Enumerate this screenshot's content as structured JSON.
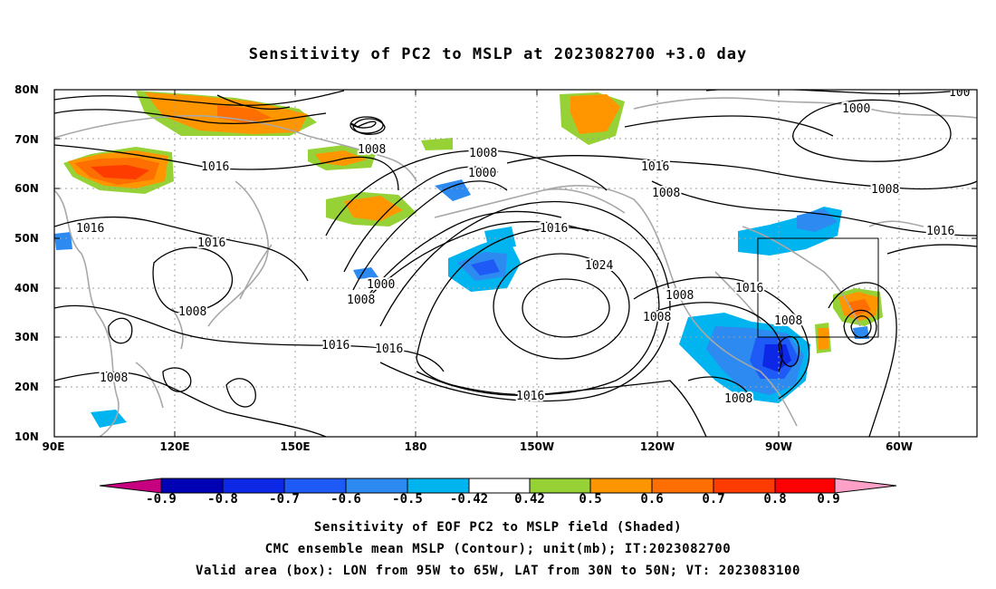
{
  "title": "Sensitivity of PC2 to MSLP at 2023082700 +3.0 day",
  "map": {
    "lat_labels": [
      "80N",
      "70N",
      "60N",
      "50N",
      "40N",
      "30N",
      "20N",
      "10N"
    ],
    "lon_labels": [
      "90E",
      "120E",
      "150E",
      "180",
      "150W",
      "120W",
      "90W",
      "60W"
    ],
    "valid_box": {
      "lon_from": "95W",
      "lon_to": "65W",
      "lat_from": "30N",
      "lat_to": "50N"
    },
    "contour_labels": [
      "1000",
      "1000",
      "1000",
      "1008",
      "1008",
      "1008",
      "1008",
      "1008",
      "1008",
      "1008",
      "1008",
      "1008",
      "1008",
      "1008",
      "1016",
      "1016",
      "1016",
      "1016",
      "1016",
      "1016",
      "1016",
      "1016",
      "1016",
      "1016",
      "1024",
      "100"
    ],
    "colors": {
      "land_outline": "#a8a8a8",
      "grid": "#a0a0a0",
      "contour": "#000000"
    }
  },
  "colorbar": {
    "labels": [
      "-0.9",
      "-0.8",
      "-0.7",
      "-0.6",
      "-0.5",
      "-0.42",
      "0.42",
      "0.5",
      "0.6",
      "0.7",
      "0.8",
      "0.9"
    ],
    "colors": [
      "#c6007f",
      "#0000b4",
      "#0c28e6",
      "#1e5af5",
      "#2c8af0",
      "#00b4f0",
      "#ffffff",
      "#96d236",
      "#ff9600",
      "#ff6e00",
      "#ff3c00",
      "#ff0000",
      "#ffa0c8"
    ]
  },
  "captions": [
    "Sensitivity of EOF PC2 to MSLP field (Shaded)",
    "CMC ensemble mean MSLP (Contour); unit(mb); IT:2023082700",
    "Valid area (box): LON from 95W to 65W, LAT from 30N to 50N; VT: 2023083100"
  ]
}
